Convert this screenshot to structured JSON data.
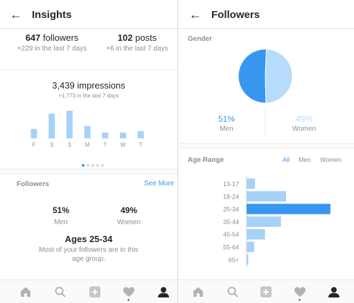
{
  "insights": {
    "header_title": "Insights",
    "followers": {
      "count": "647",
      "label": "followers",
      "sub": "+229 in the last 7 days"
    },
    "posts": {
      "count": "102",
      "label": "posts",
      "sub": "+6 in the last 7 days"
    },
    "impressions": {
      "value": "3,439 impressions",
      "sub": "+1,773 in the last 7 days"
    },
    "chart_data": {
      "type": "bar",
      "categories": [
        "F",
        "S",
        "S",
        "M",
        "T",
        "W",
        "T"
      ],
      "values": [
        13,
        34,
        38,
        17,
        8,
        8,
        10
      ]
    },
    "followers_section": {
      "label": "Followers",
      "see_more": "See More"
    },
    "gender": {
      "men_pct": "51%",
      "men_label": "Men",
      "women_pct": "49%",
      "women_label": "Women"
    },
    "ages": {
      "title": "Ages 25-34",
      "desc": "Most of your followers are in this age group."
    }
  },
  "followers_screen": {
    "header_title": "Followers",
    "gender_label": "Gender",
    "gender": {
      "men_pct": "51%",
      "men_label": "Men",
      "women_pct": "49%",
      "women_label": "Women"
    },
    "pie": {
      "type": "pie",
      "values": [
        51,
        49
      ],
      "colors": [
        "#3897f0",
        "#b7dbfb"
      ]
    },
    "age_range_label": "Age Range",
    "filters": [
      "All",
      "Men",
      "Women"
    ],
    "age_chart": {
      "type": "bar",
      "orientation": "horizontal",
      "categories": [
        "13-17",
        "18-24",
        "25-34",
        "35-44",
        "45-54",
        "55-64",
        "65+"
      ],
      "values": [
        10,
        47,
        100,
        41,
        22,
        9,
        2
      ]
    }
  },
  "colors": {
    "accent": "#3897f0",
    "bar": "#a8d1f7",
    "bar_strong": "#3897f0",
    "pie_light": "#b7dbfb"
  },
  "nav_icons": [
    "home-icon",
    "search-icon",
    "add-icon",
    "heart-icon",
    "profile-icon"
  ]
}
